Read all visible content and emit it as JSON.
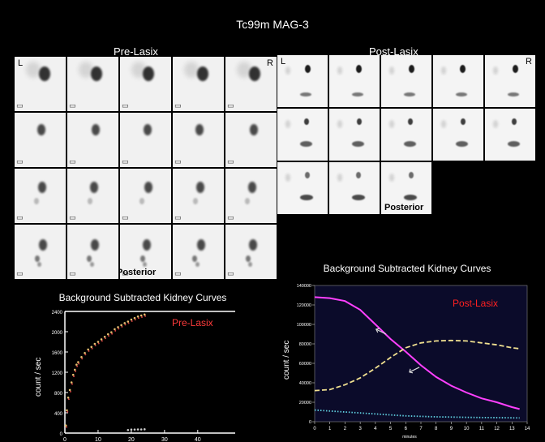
{
  "title": "Tc99m MAG-3",
  "pre": {
    "heading": "Pre-Lasix",
    "left_marker": "L",
    "right_marker": "R",
    "view_label": "Posterior",
    "rows": 4,
    "cols": 5
  },
  "post": {
    "heading": "Post-Lasix",
    "left_marker": "L",
    "right_marker": "R",
    "view_label": "Posterior",
    "frame_count": 13
  },
  "chart_data": [
    {
      "type": "scatter",
      "title": "Background Subtracted Kidney Curves",
      "legend": "Pre-Lasix",
      "legend_color": "#ff3b3b",
      "ylabel": "count / sec",
      "xlabel": "",
      "xlim": [
        0,
        40
      ],
      "ylim": [
        0,
        2400
      ],
      "x_ticks": [
        "0",
        "10",
        "20",
        "30",
        "40"
      ],
      "y_ticks": [
        "0",
        "400",
        "800",
        "1200",
        "1600",
        "2000",
        "2400"
      ],
      "series": [
        {
          "color": "#e8c070",
          "x": [
            0.3,
            0.6,
            1,
            1.5,
            2,
            2.5,
            3,
            3.5,
            4,
            5,
            6,
            7,
            8,
            9,
            10,
            11,
            12,
            13,
            14,
            15,
            16,
            17,
            18,
            19,
            20,
            21,
            22,
            23,
            24
          ],
          "y": [
            150,
            450,
            700,
            850,
            1000,
            1150,
            1250,
            1350,
            1400,
            1500,
            1580,
            1650,
            1700,
            1760,
            1800,
            1850,
            1900,
            1950,
            1990,
            2050,
            2090,
            2130,
            2170,
            2200,
            2240,
            2270,
            2300,
            2320,
            2340
          ]
        },
        {
          "color": "#cccccc",
          "x": [
            19,
            20,
            21,
            22,
            23,
            24
          ],
          "y": [
            60,
            70,
            70,
            72,
            72,
            75
          ]
        }
      ]
    },
    {
      "type": "line",
      "title": "Background Subtracted Kidney Curves",
      "legend": "Post-Lasix",
      "legend_color": "#ff2020",
      "ylabel": "count / sec",
      "xlabel": "minutes",
      "xlim": [
        0,
        14
      ],
      "ylim": [
        0,
        140000
      ],
      "x_ticks": [
        "0",
        "1",
        "2",
        "3",
        "4",
        "5",
        "6",
        "7",
        "8",
        "9",
        "10",
        "11",
        "12",
        "13",
        "14"
      ],
      "y_ticks": [
        "0",
        "20000",
        "40000",
        "60000",
        "80000",
        "100000",
        "120000",
        "140000"
      ],
      "series": [
        {
          "color": "#ff40ff",
          "style": "solid",
          "x": [
            0,
            1,
            2,
            3,
            4,
            5,
            6,
            7,
            8,
            9,
            10,
            11,
            12,
            13,
            13.5
          ],
          "y": [
            128000,
            127000,
            124000,
            115000,
            100000,
            85000,
            72000,
            58000,
            46000,
            37000,
            30000,
            24000,
            20000,
            15000,
            13000
          ]
        },
        {
          "color": "#f0e090",
          "style": "dashed",
          "x": [
            0,
            1,
            2,
            3,
            4,
            5,
            6,
            7,
            8,
            9,
            10,
            11,
            12,
            13,
            13.5
          ],
          "y": [
            32000,
            33000,
            38000,
            45000,
            55000,
            66000,
            76000,
            81000,
            83000,
            83500,
            83000,
            81000,
            79000,
            76000,
            75000
          ]
        },
        {
          "color": "#60d0e0",
          "style": "dotted",
          "x": [
            0,
            1,
            2,
            3,
            4,
            5,
            6,
            7,
            8,
            9,
            10,
            11,
            12,
            13,
            13.5
          ],
          "y": [
            12000,
            11000,
            10000,
            9000,
            8000,
            7000,
            6000,
            5500,
            5000,
            4800,
            4500,
            4300,
            4200,
            4000,
            3900
          ]
        }
      ]
    }
  ]
}
